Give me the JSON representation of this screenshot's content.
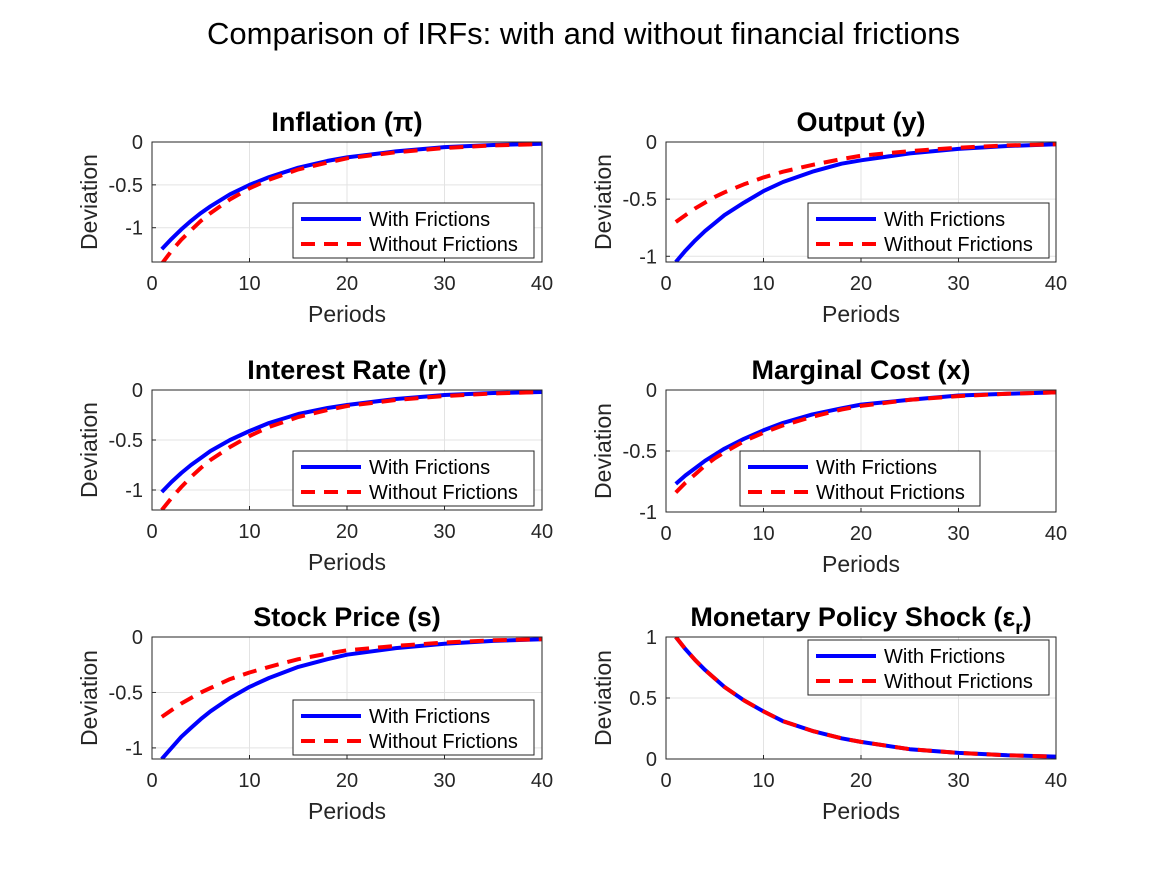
{
  "figure": {
    "title": "Comparison of IRFs: with and without financial frictions"
  },
  "colors": {
    "with": "#0000ff",
    "without": "#ff0000",
    "grid": "#e3e3e3",
    "axis": "#262626"
  },
  "chart_data": [
    {
      "type": "line",
      "title": "Inflation (π)",
      "xlabel": "Periods",
      "ylabel": "Deviation",
      "xlim": [
        0,
        40
      ],
      "ylim": [
        -1.4,
        0
      ],
      "xticks": [
        "0",
        "10",
        "20",
        "30",
        "40"
      ],
      "yticks": [
        [
          "0",
          0
        ],
        [
          "-0.5",
          -0.5
        ],
        [
          "-1",
          -1
        ]
      ],
      "grid": true,
      "legend_position": "bottom-right",
      "x": [
        1,
        2,
        3,
        4,
        5,
        6,
        8,
        10,
        12,
        15,
        18,
        20,
        25,
        30,
        35,
        40
      ],
      "series": [
        {
          "name": "With Frictions",
          "values": [
            -1.25,
            -1.13,
            -1.02,
            -0.92,
            -0.83,
            -0.75,
            -0.61,
            -0.5,
            -0.41,
            -0.3,
            -0.22,
            -0.18,
            -0.11,
            -0.06,
            -0.035,
            -0.02
          ]
        },
        {
          "name": "Without Frictions",
          "values": [
            -1.42,
            -1.27,
            -1.14,
            -1.03,
            -0.92,
            -0.83,
            -0.67,
            -0.54,
            -0.44,
            -0.32,
            -0.24,
            -0.19,
            -0.12,
            -0.07,
            -0.04,
            -0.025
          ]
        }
      ]
    },
    {
      "type": "line",
      "title": "Output (y)",
      "xlabel": "Periods",
      "ylabel": "Deviation",
      "xlim": [
        0,
        40
      ],
      "ylim": [
        -1.05,
        0
      ],
      "xticks": [
        "0",
        "10",
        "20",
        "30",
        "40"
      ],
      "yticks": [
        [
          "0",
          0
        ],
        [
          "-0.5",
          -0.5
        ],
        [
          "-1",
          -1
        ]
      ],
      "grid": true,
      "legend_position": "bottom-right",
      "x": [
        1,
        2,
        3,
        4,
        5,
        6,
        8,
        10,
        12,
        15,
        18,
        20,
        25,
        30,
        35,
        40
      ],
      "series": [
        {
          "name": "With Frictions",
          "values": [
            -1.05,
            -0.95,
            -0.86,
            -0.78,
            -0.71,
            -0.64,
            -0.53,
            -0.43,
            -0.35,
            -0.26,
            -0.19,
            -0.16,
            -0.1,
            -0.06,
            -0.035,
            -0.02
          ]
        },
        {
          "name": "Without Frictions",
          "values": [
            -0.7,
            -0.64,
            -0.58,
            -0.53,
            -0.48,
            -0.44,
            -0.37,
            -0.31,
            -0.26,
            -0.2,
            -0.15,
            -0.12,
            -0.08,
            -0.05,
            -0.03,
            -0.02
          ]
        }
      ]
    },
    {
      "type": "line",
      "title": "Interest Rate (r)",
      "xlabel": "Periods",
      "ylabel": "Deviation",
      "xlim": [
        0,
        40
      ],
      "ylim": [
        -1.2,
        0
      ],
      "xticks": [
        "0",
        "10",
        "20",
        "30",
        "40"
      ],
      "yticks": [
        [
          "0",
          0
        ],
        [
          "-0.5",
          -0.5
        ],
        [
          "-1",
          -1
        ]
      ],
      "grid": true,
      "legend_position": "bottom-right",
      "x": [
        1,
        2,
        3,
        4,
        5,
        6,
        8,
        10,
        12,
        15,
        18,
        20,
        25,
        30,
        35,
        40
      ],
      "series": [
        {
          "name": "With Frictions",
          "values": [
            -1.02,
            -0.92,
            -0.83,
            -0.75,
            -0.68,
            -0.61,
            -0.5,
            -0.41,
            -0.33,
            -0.24,
            -0.18,
            -0.15,
            -0.09,
            -0.05,
            -0.03,
            -0.02
          ]
        },
        {
          "name": "Without Frictions",
          "values": [
            -1.2,
            -1.08,
            -0.97,
            -0.87,
            -0.78,
            -0.7,
            -0.57,
            -0.46,
            -0.37,
            -0.27,
            -0.2,
            -0.16,
            -0.1,
            -0.06,
            -0.035,
            -0.02
          ]
        }
      ]
    },
    {
      "type": "line",
      "title": "Marginal Cost (x)",
      "xlabel": "Periods",
      "ylabel": "Deviation",
      "xlim": [
        0,
        40
      ],
      "ylim": [
        -1,
        0
      ],
      "xticks": [
        "0",
        "10",
        "20",
        "30",
        "40"
      ],
      "yticks": [
        [
          "0",
          0
        ],
        [
          "-0.5",
          -0.5
        ],
        [
          "-1",
          -1
        ]
      ],
      "grid": true,
      "legend_position": "bottom-right",
      "x": [
        1,
        2,
        3,
        4,
        5,
        6,
        8,
        10,
        12,
        15,
        18,
        20,
        25,
        30,
        35,
        40
      ],
      "series": [
        {
          "name": "With Frictions",
          "values": [
            -0.77,
            -0.7,
            -0.64,
            -0.58,
            -0.53,
            -0.48,
            -0.4,
            -0.33,
            -0.27,
            -0.2,
            -0.15,
            -0.12,
            -0.08,
            -0.045,
            -0.03,
            -0.02
          ]
        },
        {
          "name": "Without Frictions",
          "values": [
            -0.84,
            -0.76,
            -0.69,
            -0.62,
            -0.56,
            -0.51,
            -0.42,
            -0.35,
            -0.29,
            -0.22,
            -0.16,
            -0.13,
            -0.08,
            -0.05,
            -0.03,
            -0.02
          ]
        }
      ]
    },
    {
      "type": "line",
      "title": "Stock Price (s)",
      "xlabel": "Periods",
      "ylabel": "Deviation",
      "xlim": [
        0,
        40
      ],
      "ylim": [
        -1.1,
        0
      ],
      "xticks": [
        "0",
        "10",
        "20",
        "30",
        "40"
      ],
      "yticks": [
        [
          "0",
          0
        ],
        [
          "-0.5",
          -0.5
        ],
        [
          "-1",
          -1
        ]
      ],
      "grid": true,
      "legend_position": "bottom-right",
      "x": [
        1,
        2,
        3,
        4,
        5,
        6,
        8,
        10,
        12,
        15,
        18,
        20,
        25,
        30,
        35,
        40
      ],
      "series": [
        {
          "name": "With Frictions",
          "values": [
            -1.1,
            -1.0,
            -0.9,
            -0.82,
            -0.74,
            -0.67,
            -0.55,
            -0.45,
            -0.37,
            -0.27,
            -0.2,
            -0.16,
            -0.1,
            -0.06,
            -0.035,
            -0.02
          ]
        },
        {
          "name": "Without Frictions",
          "values": [
            -0.72,
            -0.66,
            -0.6,
            -0.55,
            -0.5,
            -0.46,
            -0.38,
            -0.32,
            -0.27,
            -0.2,
            -0.15,
            -0.12,
            -0.08,
            -0.05,
            -0.03,
            -0.02
          ]
        }
      ]
    },
    {
      "type": "line",
      "title": "Monetary Policy Shock (ε",
      "title_subscript": "r",
      "title_close": ")",
      "xlabel": "Periods",
      "ylabel": "Deviation",
      "xlim": [
        0,
        40
      ],
      "ylim": [
        0,
        1
      ],
      "xticks": [
        "0",
        "10",
        "20",
        "30",
        "40"
      ],
      "yticks": [
        [
          "0",
          0
        ],
        [
          "0.5",
          0.5
        ],
        [
          "1",
          1
        ]
      ],
      "grid": true,
      "legend_position": "top-right",
      "x": [
        1,
        2,
        3,
        4,
        5,
        6,
        8,
        10,
        12,
        15,
        18,
        20,
        25,
        30,
        35,
        40
      ],
      "series": [
        {
          "name": "With Frictions",
          "values": [
            1.0,
            0.9,
            0.81,
            0.73,
            0.66,
            0.59,
            0.48,
            0.39,
            0.31,
            0.23,
            0.17,
            0.14,
            0.08,
            0.05,
            0.03,
            0.02
          ]
        },
        {
          "name": "Without Frictions",
          "values": [
            1.0,
            0.9,
            0.81,
            0.73,
            0.66,
            0.59,
            0.48,
            0.39,
            0.31,
            0.23,
            0.17,
            0.14,
            0.08,
            0.05,
            0.03,
            0.02
          ]
        }
      ]
    }
  ]
}
